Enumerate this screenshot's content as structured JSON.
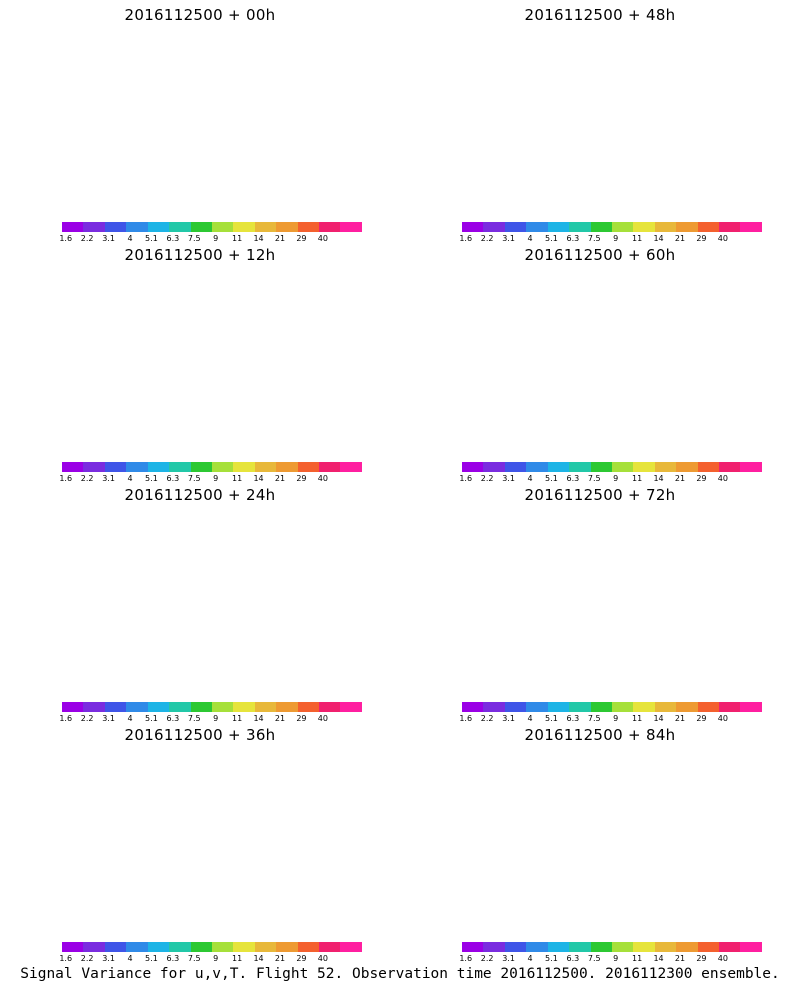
{
  "panels": [
    {
      "title": "2016112500 + 00h",
      "lead": 0
    },
    {
      "title": "2016112500 + 48h",
      "lead": 48
    },
    {
      "title": "2016112500 + 12h",
      "lead": 12
    },
    {
      "title": "2016112500 + 60h",
      "lead": 60
    },
    {
      "title": "2016112500 + 24h",
      "lead": 24
    },
    {
      "title": "2016112500 + 72h",
      "lead": 72
    },
    {
      "title": "2016112500 + 36h",
      "lead": 36
    },
    {
      "title": "2016112500 + 84h",
      "lead": 84
    }
  ],
  "colorbar": {
    "labels": [
      "1.6",
      "2.2",
      "3.1",
      "4",
      "5.1",
      "6.3",
      "7.5",
      "9",
      "11",
      "14",
      "21",
      "29",
      "40"
    ],
    "colors": [
      "#9a00e6",
      "#7a2ce0",
      "#3f55e8",
      "#2f8ae8",
      "#1db4e6",
      "#22c8a8",
      "#2cc832",
      "#a6e03a",
      "#e6e43c",
      "#e8b83a",
      "#ee9a32",
      "#f4602e",
      "#f0206e",
      "#ff1fa0"
    ]
  },
  "caption": "Signal Variance for u,v,T. Flight 52. Observation time 2016112500. 2016112300 ensemble."
}
